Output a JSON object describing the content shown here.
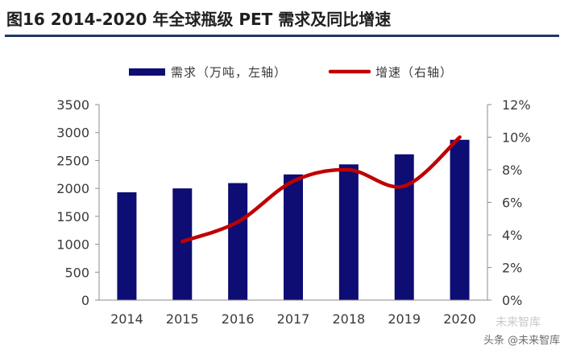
{
  "title": "图16 2014-2020 年全球瓶级 PET 需求及同比增速",
  "chart_data": {
    "type": "bar+line",
    "categories": [
      "2014",
      "2015",
      "2016",
      "2017",
      "2018",
      "2019",
      "2020"
    ],
    "series": [
      {
        "name": "需求（万吨，左轴）",
        "type": "bar",
        "axis": "left",
        "color": "#0d0d73",
        "values": [
          1930,
          2000,
          2095,
          2250,
          2430,
          2610,
          2870
        ]
      },
      {
        "name": "增速（右轴）",
        "type": "line",
        "axis": "right",
        "color": "#c00000",
        "values": [
          null,
          3.6,
          4.8,
          7.3,
          8.0,
          7.0,
          10.0
        ]
      }
    ],
    "y_left": {
      "min": 0,
      "max": 3500,
      "step": 500,
      "ticks": [
        "0",
        "500",
        "1000",
        "1500",
        "2000",
        "2500",
        "3000",
        "3500"
      ]
    },
    "y_right": {
      "min": 0,
      "max": 12,
      "step": 2,
      "ticks": [
        "0%",
        "2%",
        "4%",
        "6%",
        "8%",
        "10%",
        "12%"
      ]
    },
    "legend_position": "top"
  },
  "watermark": {
    "label": "头条 @未来智库",
    "logo_text": "未来智库"
  }
}
